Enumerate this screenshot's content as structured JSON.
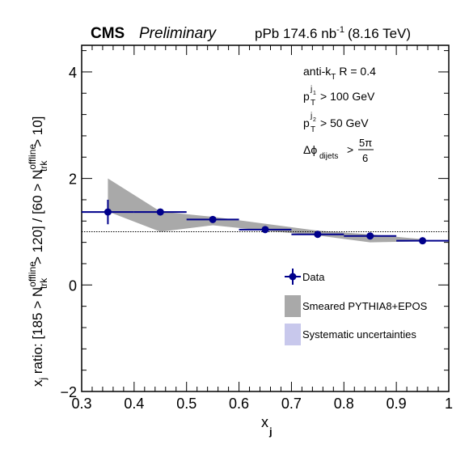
{
  "header": {
    "experiment": "CMS",
    "status": "Preliminary",
    "dataset_prefix": "pPb 174.6 nb",
    "dataset_exp": "-1",
    "dataset_energy": "(8.16 TeV)"
  },
  "cuts": {
    "algo_prefix": "anti-k",
    "algo_sub": "T",
    "algo_suffix": "R = 0.4",
    "pt1_sup": "j",
    "pt1_supsub": "1",
    "pt1_sub": "T",
    "pt1_value": "> 100 GeV",
    "pt2_sup": "j",
    "pt2_supsub": "2",
    "pt2_sub": "T",
    "pt2_value": "> 50 GeV",
    "dphi_sub": "dijets",
    "dphi_gt": ">",
    "dphi_num": "5π",
    "dphi_den": "6"
  },
  "legend_text": {
    "data": "Data",
    "mc": "Smeared PYTHIA8+EPOS",
    "syst": "Systematic uncertainties"
  },
  "chart_data": {
    "type": "scatter",
    "xlabel": "x",
    "xlabel_sub": "j",
    "ylabel_parts": {
      "prefix": "x",
      "prefix_sub": "j",
      "mid1": " ratio: [185 > N",
      "sup1": "offline",
      "sub1": "trk",
      "mid2": " > 120] / [60 > N",
      "sup2": "offline",
      "sub2": "trk",
      "mid3": " > 10]"
    },
    "xlim": [
      0.3,
      1.0
    ],
    "ylim": [
      -2,
      4.5
    ],
    "x_ticks": [
      "0.3",
      "0.4",
      "0.5",
      "0.6",
      "0.7",
      "0.8",
      "0.9",
      "1"
    ],
    "y_ticks": [
      "4",
      "2",
      "0",
      "−2"
    ],
    "reference_line": 1.0,
    "series": [
      {
        "name": "Data",
        "color": "#00008b",
        "x": [
          0.35,
          0.45,
          0.55,
          0.65,
          0.75,
          0.85,
          0.95
        ],
        "y": [
          1.37,
          1.37,
          1.23,
          1.04,
          0.95,
          0.92,
          0.83
        ],
        "xerr": [
          0.05,
          0.05,
          0.05,
          0.05,
          0.05,
          0.05,
          0.05
        ],
        "yerr": [
          0.23,
          0.05,
          0.04,
          0.04,
          0.04,
          0.04,
          0.03
        ]
      },
      {
        "name": "Smeared PYTHIA8+EPOS",
        "color": "#a9a9a9",
        "x": [
          0.35,
          0.45,
          0.55,
          0.65,
          0.75,
          0.85,
          0.95
        ],
        "y_low": [
          1.38,
          1.0,
          1.12,
          1.02,
          0.93,
          0.8,
          0.82
        ],
        "y_high": [
          2.0,
          1.38,
          1.28,
          1.15,
          1.02,
          0.95,
          0.86
        ]
      },
      {
        "name": "Systematic uncertainties",
        "color": "#c8c8ec",
        "x": [],
        "y": []
      }
    ]
  }
}
